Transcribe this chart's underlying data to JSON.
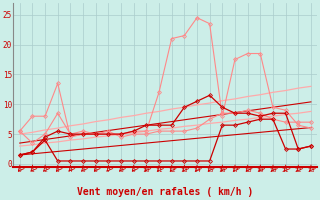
{
  "x": [
    0,
    1,
    2,
    3,
    4,
    5,
    6,
    7,
    8,
    9,
    10,
    11,
    12,
    13,
    14,
    15,
    16,
    17,
    18,
    19,
    20,
    21,
    22,
    23
  ],
  "background_color": "#cceee8",
  "grid_color": "#aacccc",
  "xlabel": "Vent moyen/en rafales ( km/h )",
  "xlabel_color": "#cc0000",
  "xlabel_fontsize": 7,
  "tick_color": "#cc0000",
  "yticks": [
    0,
    5,
    10,
    15,
    20,
    25
  ],
  "ylim": [
    -0.5,
    27
  ],
  "xlim": [
    -0.5,
    23.5
  ],
  "pink_wavy1": [
    5.5,
    8.0,
    8.0,
    13.5,
    4.5,
    5.0,
    5.0,
    5.0,
    5.0,
    5.5,
    5.5,
    12.0,
    21.0,
    21.5,
    24.5,
    23.5,
    8.0,
    17.5,
    18.5,
    18.5,
    9.5,
    9.0,
    6.5,
    6.0
  ],
  "pink_wavy2": [
    5.5,
    3.5,
    5.0,
    8.5,
    5.0,
    5.5,
    5.0,
    5.5,
    4.5,
    5.0,
    5.0,
    5.5,
    5.5,
    5.5,
    6.0,
    7.5,
    8.5,
    8.5,
    9.0,
    8.5,
    7.5,
    7.0,
    7.0,
    7.0
  ],
  "pink_trend_lo": [
    3.0,
    3.2,
    3.5,
    3.7,
    4.0,
    4.2,
    4.5,
    4.7,
    5.0,
    5.2,
    5.5,
    5.8,
    6.0,
    6.3,
    6.5,
    6.8,
    7.0,
    7.3,
    7.5,
    7.8,
    8.0,
    8.3,
    8.5,
    8.8
  ],
  "pink_trend_hi": [
    5.0,
    5.3,
    5.7,
    6.0,
    6.4,
    6.7,
    7.1,
    7.4,
    7.8,
    8.1,
    8.5,
    8.8,
    9.2,
    9.5,
    9.9,
    10.2,
    10.6,
    10.9,
    11.3,
    11.6,
    12.0,
    12.3,
    12.7,
    13.0
  ],
  "red_wavy1": [
    1.5,
    2.0,
    4.5,
    5.5,
    5.0,
    5.0,
    5.0,
    5.0,
    5.0,
    5.5,
    6.5,
    6.5,
    6.5,
    9.5,
    10.5,
    11.5,
    9.5,
    8.5,
    8.5,
    8.0,
    8.5,
    8.5,
    2.5,
    3.0
  ],
  "red_wavy2": [
    1.5,
    2.0,
    4.0,
    0.5,
    0.5,
    0.5,
    0.5,
    0.5,
    0.5,
    0.5,
    0.5,
    0.5,
    0.5,
    0.5,
    0.5,
    0.5,
    6.5,
    6.5,
    7.0,
    7.5,
    7.5,
    2.5,
    2.5,
    3.0
  ],
  "red_trend_lo": [
    1.5,
    1.7,
    1.9,
    2.1,
    2.3,
    2.5,
    2.7,
    2.9,
    3.1,
    3.3,
    3.5,
    3.7,
    3.9,
    4.1,
    4.3,
    4.5,
    4.7,
    4.9,
    5.1,
    5.3,
    5.5,
    5.7,
    5.9,
    6.1
  ],
  "red_trend_hi": [
    3.5,
    3.8,
    4.1,
    4.4,
    4.7,
    5.0,
    5.3,
    5.6,
    5.9,
    6.2,
    6.5,
    6.8,
    7.1,
    7.4,
    7.7,
    8.0,
    8.3,
    8.6,
    8.9,
    9.2,
    9.5,
    9.8,
    10.1,
    10.4
  ]
}
